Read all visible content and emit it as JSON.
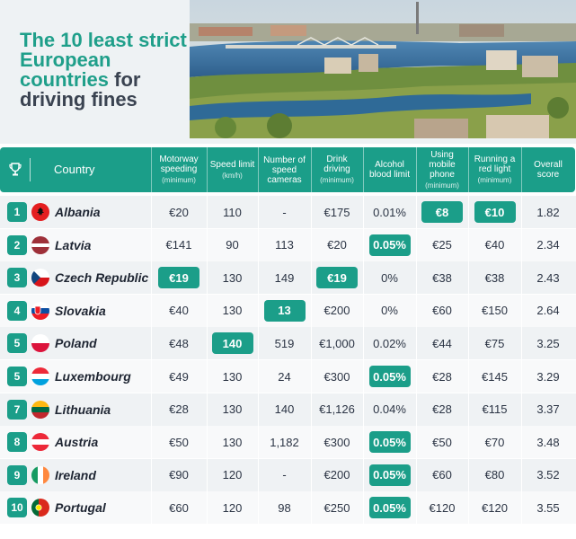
{
  "headline": {
    "part1": "The 10 least strict European countries",
    "part2": " for driving fines"
  },
  "colors": {
    "accent": "#1b9e89",
    "title_teal": "#1f9f8a",
    "title_dark": "#3a4351"
  },
  "table": {
    "headers": {
      "country": "Country",
      "motorway": {
        "label": "Motorway speeding",
        "sub": "(minimum)"
      },
      "speed_limit": {
        "label": "Speed limit",
        "sub": "(km/h)"
      },
      "cameras": {
        "label": "Number of speed cameras",
        "sub": ""
      },
      "drink": {
        "label": "Drink driving",
        "sub": "(minimum)"
      },
      "alcohol": {
        "label": "Alcohol blood limit",
        "sub": ""
      },
      "phone": {
        "label": "Using mobile phone",
        "sub": "(minimum)"
      },
      "red_light": {
        "label": "Running a red light",
        "sub": "(minimum)"
      },
      "overall": {
        "label": "Overall score",
        "sub": ""
      }
    },
    "rows": [
      {
        "rank": "1",
        "country": "Albania",
        "flag": "albania-flag-icon",
        "motorway": "€20",
        "speed_limit": "110",
        "cameras": "-",
        "drink": "€175",
        "alcohol": "0.01%",
        "phone": "€8",
        "red_light": "€10",
        "overall": "1.82"
      },
      {
        "rank": "2",
        "country": "Latvia",
        "flag": "latvia-flag-icon",
        "motorway": "€141",
        "speed_limit": "90",
        "cameras": "113",
        "drink": "€20",
        "alcohol": "0.05%",
        "phone": "€25",
        "red_light": "€40",
        "overall": "2.34"
      },
      {
        "rank": "3",
        "country": "Czech Republic",
        "flag": "czech-flag-icon",
        "motorway": "€19",
        "speed_limit": "130",
        "cameras": "149",
        "drink": "€19",
        "alcohol": "0%",
        "phone": "€38",
        "red_light": "€38",
        "overall": "2.43"
      },
      {
        "rank": "4",
        "country": "Slovakia",
        "flag": "slovakia-flag-icon",
        "motorway": "€40",
        "speed_limit": "130",
        "cameras": "13",
        "drink": "€200",
        "alcohol": "0%",
        "phone": "€60",
        "red_light": "€150",
        "overall": "2.64"
      },
      {
        "rank": "5",
        "country": "Poland",
        "flag": "poland-flag-icon",
        "motorway": "€48",
        "speed_limit": "140",
        "cameras": "519",
        "drink": "€1,000",
        "alcohol": "0.02%",
        "phone": "€44",
        "red_light": "€75",
        "overall": "3.25"
      },
      {
        "rank": "5",
        "country": "Luxembourg",
        "flag": "luxembourg-flag-icon",
        "motorway": "€49",
        "speed_limit": "130",
        "cameras": "24",
        "drink": "€300",
        "alcohol": "0.05%",
        "phone": "€28",
        "red_light": "€145",
        "overall": "3.29"
      },
      {
        "rank": "7",
        "country": "Lithuania",
        "flag": "lithuania-flag-icon",
        "motorway": "€28",
        "speed_limit": "130",
        "cameras": "140",
        "drink": "€1,126",
        "alcohol": "0.04%",
        "phone": "€28",
        "red_light": "€115",
        "overall": "3.37"
      },
      {
        "rank": "8",
        "country": "Austria",
        "flag": "austria-flag-icon",
        "motorway": "€50",
        "speed_limit": "130",
        "cameras": "1,182",
        "drink": "€300",
        "alcohol": "0.05%",
        "phone": "€50",
        "red_light": "€70",
        "overall": "3.48"
      },
      {
        "rank": "9",
        "country": "Ireland",
        "flag": "ireland-flag-icon",
        "motorway": "€90",
        "speed_limit": "120",
        "cameras": "-",
        "drink": "€200",
        "alcohol": "0.05%",
        "phone": "€60",
        "red_light": "€80",
        "overall": "3.52"
      },
      {
        "rank": "10",
        "country": "Portugal",
        "flag": "portugal-flag-icon",
        "motorway": "€60",
        "speed_limit": "120",
        "cameras": "98",
        "drink": "€250",
        "alcohol": "0.05%",
        "phone": "€120",
        "red_light": "€120",
        "overall": "3.55"
      }
    ]
  }
}
